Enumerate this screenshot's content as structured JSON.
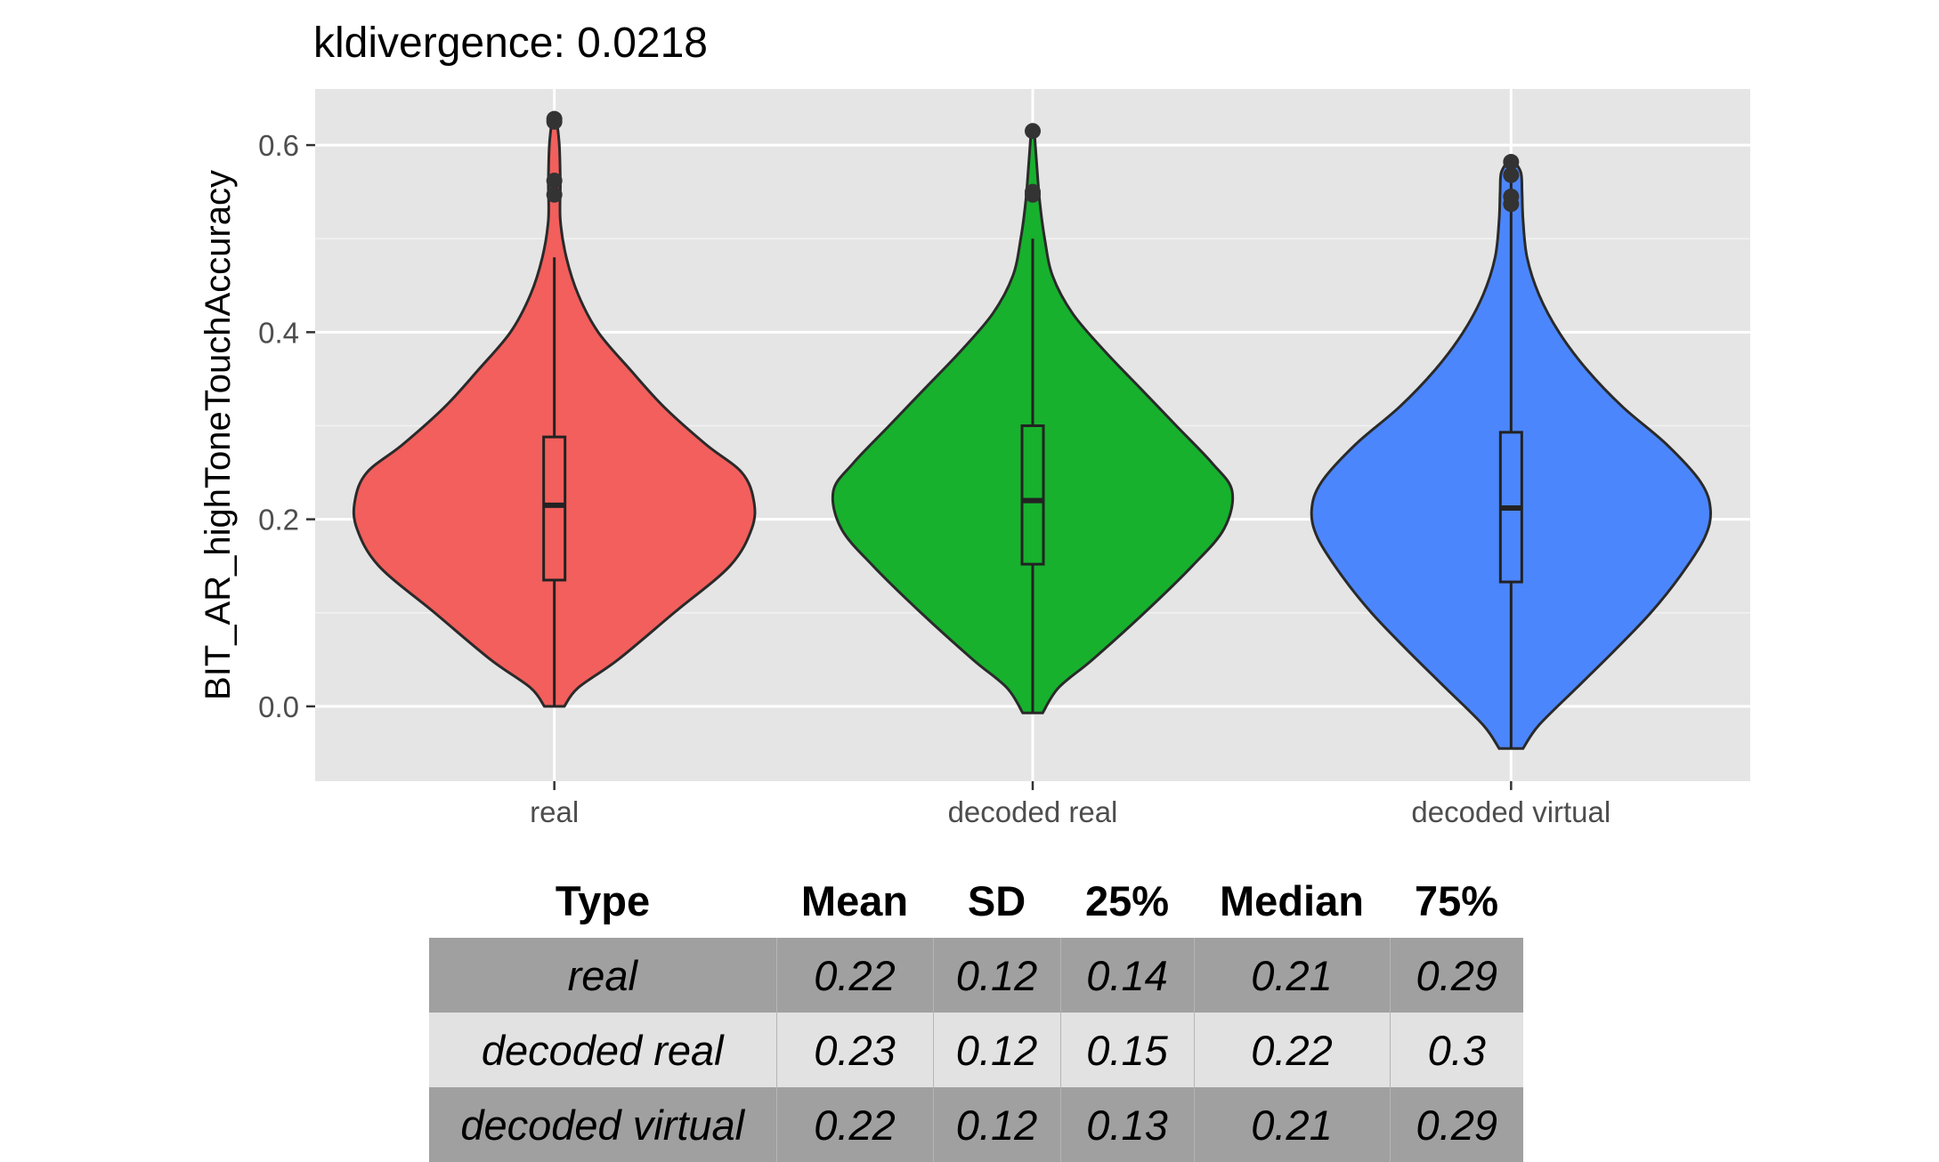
{
  "chart_data": {
    "type": "violin",
    "title": "kldivergence: 0.0218",
    "xlabel": "",
    "ylabel": "BIT_AR_highToneTouchAccuracy",
    "ylim": [
      -0.08,
      0.66
    ],
    "y_ticks": [
      "0.0",
      "0.2",
      "0.4",
      "0.6"
    ],
    "y_tick_values": [
      0.0,
      0.2,
      0.4,
      0.6
    ],
    "grid": true,
    "categories": [
      "real",
      "decoded real",
      "decoded virtual"
    ],
    "colors": [
      "#F25F5C",
      "#17B12E",
      "#4C86FC"
    ],
    "series": [
      {
        "box": {
          "whisker_low": 0.0,
          "q1": 0.135,
          "median": 0.215,
          "q3": 0.288,
          "whisker_high": 0.48
        },
        "outliers": [
          0.628,
          0.625,
          0.562,
          0.547
        ],
        "density": [
          [
            0.0,
            0.05
          ],
          [
            0.02,
            0.12
          ],
          [
            0.05,
            0.32
          ],
          [
            0.1,
            0.6
          ],
          [
            0.15,
            0.88
          ],
          [
            0.19,
            0.99
          ],
          [
            0.22,
            1.0
          ],
          [
            0.25,
            0.94
          ],
          [
            0.28,
            0.76
          ],
          [
            0.32,
            0.55
          ],
          [
            0.36,
            0.38
          ],
          [
            0.4,
            0.22
          ],
          [
            0.44,
            0.12
          ],
          [
            0.48,
            0.06
          ],
          [
            0.52,
            0.03
          ],
          [
            0.56,
            0.03
          ],
          [
            0.6,
            0.025
          ],
          [
            0.63,
            0.01
          ]
        ]
      },
      {
        "box": {
          "whisker_low": -0.007,
          "q1": 0.152,
          "median": 0.22,
          "q3": 0.3,
          "whisker_high": 0.5
        },
        "outliers": [
          0.615,
          0.55,
          0.547
        ],
        "density": [
          [
            -0.007,
            0.05
          ],
          [
            0.02,
            0.13
          ],
          [
            0.05,
            0.3
          ],
          [
            0.1,
            0.56
          ],
          [
            0.15,
            0.8
          ],
          [
            0.19,
            0.96
          ],
          [
            0.23,
            1.0
          ],
          [
            0.26,
            0.9
          ],
          [
            0.3,
            0.72
          ],
          [
            0.34,
            0.54
          ],
          [
            0.38,
            0.36
          ],
          [
            0.42,
            0.2
          ],
          [
            0.46,
            0.1
          ],
          [
            0.5,
            0.06
          ],
          [
            0.54,
            0.035
          ],
          [
            0.58,
            0.02
          ],
          [
            0.615,
            0.008
          ]
        ]
      },
      {
        "box": {
          "whisker_low": -0.045,
          "q1": 0.133,
          "median": 0.212,
          "q3": 0.293,
          "whisker_high": 0.575
        },
        "outliers": [
          0.582,
          0.568,
          0.545,
          0.537
        ],
        "density": [
          [
            -0.045,
            0.06
          ],
          [
            -0.02,
            0.14
          ],
          [
            0.02,
            0.33
          ],
          [
            0.06,
            0.52
          ],
          [
            0.1,
            0.7
          ],
          [
            0.14,
            0.85
          ],
          [
            0.18,
            0.97
          ],
          [
            0.21,
            1.0
          ],
          [
            0.24,
            0.95
          ],
          [
            0.28,
            0.78
          ],
          [
            0.32,
            0.56
          ],
          [
            0.36,
            0.38
          ],
          [
            0.4,
            0.24
          ],
          [
            0.44,
            0.14
          ],
          [
            0.48,
            0.08
          ],
          [
            0.52,
            0.06
          ],
          [
            0.55,
            0.055
          ],
          [
            0.57,
            0.05
          ],
          [
            0.582,
            0.02
          ]
        ]
      }
    ]
  },
  "table": {
    "headers": [
      "Type",
      "Mean",
      "SD",
      "25%",
      "Median",
      "75%"
    ],
    "rows": [
      [
        "real",
        "0.22",
        "0.12",
        "0.14",
        "0.21",
        "0.29"
      ],
      [
        "decoded real",
        "0.23",
        "0.12",
        "0.15",
        "0.22",
        "0.3"
      ],
      [
        "decoded virtual",
        "0.22",
        "0.12",
        "0.13",
        "0.21",
        "0.29"
      ]
    ]
  }
}
